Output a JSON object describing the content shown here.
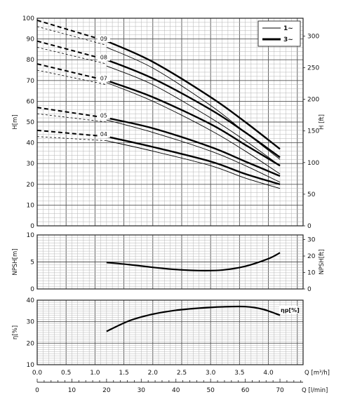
{
  "chart_data": [
    {
      "type": "line",
      "panel": "head",
      "ylabel_left": "H[m]",
      "ylabel_right": "H [ft]",
      "ylim": [
        0,
        100
      ],
      "ylim_ft": [
        0,
        328.1
      ],
      "xlim": [
        0,
        4.6
      ],
      "yticks": [
        0,
        10,
        20,
        30,
        40,
        50,
        60,
        70,
        80,
        90,
        100
      ],
      "yticks_ft": [
        0,
        50,
        100,
        150,
        200,
        250,
        300
      ],
      "legend": {
        "placement": "top-right",
        "entries": [
          {
            "label": "1~",
            "style": "thin"
          },
          {
            "label": "3~",
            "style": "thick"
          }
        ]
      },
      "series": [
        {
          "name": "09",
          "phase": "3~",
          "x": [
            1.2,
            2.0,
            3.0,
            3.6,
            4.2
          ],
          "y": [
            89,
            79,
            62,
            50,
            37
          ],
          "extrap_x": [
            0,
            1.2
          ],
          "extrap_y": [
            99,
            89
          ]
        },
        {
          "name": "09",
          "phase": "1~",
          "x": [
            1.2,
            2.0,
            3.0,
            3.6,
            4.2
          ],
          "y": [
            86,
            76,
            58,
            45,
            32
          ]
        },
        {
          "name": "08",
          "phase": "3~",
          "x": [
            1.2,
            2.0,
            3.0,
            3.6,
            4.2
          ],
          "y": [
            80,
            71,
            56,
            45,
            33
          ],
          "extrap_x": [
            0,
            1.2
          ],
          "extrap_y": [
            89,
            80
          ]
        },
        {
          "name": "08",
          "phase": "1~",
          "x": [
            1.2,
            2.0,
            3.0,
            3.6,
            4.2
          ],
          "y": [
            77,
            68,
            52,
            41,
            29
          ]
        },
        {
          "name": "07",
          "phase": "3~",
          "x": [
            1.2,
            2.0,
            3.0,
            3.6,
            4.2
          ],
          "y": [
            70,
            62,
            49,
            39,
            29
          ],
          "extrap_x": [
            0,
            1.2
          ],
          "extrap_y": [
            78,
            70
          ]
        },
        {
          "name": "07",
          "phase": "1~",
          "x": [
            1.2,
            2.0,
            3.0,
            3.6,
            4.2
          ],
          "y": [
            69,
            60,
            46,
            36,
            25
          ]
        },
        {
          "name": "05",
          "phase": "3~",
          "x": [
            1.2,
            2.0,
            3.0,
            3.6,
            4.2
          ],
          "y": [
            52,
            47,
            38,
            31,
            24
          ],
          "extrap_x": [
            0,
            1.2
          ],
          "extrap_y": [
            57,
            52
          ]
        },
        {
          "name": "05",
          "phase": "1~",
          "x": [
            1.2,
            2.0,
            3.0,
            3.6,
            4.2
          ],
          "y": [
            51,
            45,
            36,
            29,
            21
          ]
        },
        {
          "name": "04",
          "phase": "3~",
          "x": [
            1.2,
            2.0,
            3.0,
            3.6,
            4.2
          ],
          "y": [
            43,
            38,
            31,
            25,
            20
          ],
          "extrap_x": [
            0,
            1.2
          ],
          "extrap_y": [
            46,
            43
          ]
        },
        {
          "name": "04",
          "phase": "1~",
          "x": [
            1.2,
            2.0,
            3.0,
            3.6,
            4.2
          ],
          "y": [
            41,
            36,
            29,
            23,
            18
          ]
        }
      ]
    },
    {
      "type": "line",
      "panel": "npsh",
      "ylabel_left": "NPSH[m]",
      "ylabel_right": "NPSH[ft]",
      "ylim": [
        0,
        10
      ],
      "ylim_ft": [
        0,
        32.8
      ],
      "xlim": [
        0,
        4.6
      ],
      "yticks": [
        0,
        5,
        10
      ],
      "yticks_ft": [
        0,
        10,
        20,
        30
      ],
      "series": [
        {
          "x": [
            1.2,
            1.6,
            2.0,
            2.4,
            2.8,
            3.2,
            3.6,
            4.0,
            4.2
          ],
          "y": [
            4.9,
            4.5,
            4.0,
            3.6,
            3.4,
            3.5,
            4.2,
            5.6,
            6.7
          ]
        }
      ]
    },
    {
      "type": "line",
      "panel": "efficiency",
      "ylabel_left": "η[%]",
      "ylim": [
        10,
        40
      ],
      "xlim": [
        0,
        4.6
      ],
      "yticks": [
        10,
        20,
        30,
        40
      ],
      "annotation": "ηp[%]",
      "series": [
        {
          "x": [
            1.2,
            1.6,
            2.0,
            2.4,
            2.8,
            3.2,
            3.6,
            3.9,
            4.2
          ],
          "y": [
            25.5,
            30.5,
            33.5,
            35.3,
            36.3,
            36.9,
            37.0,
            35.8,
            33.0
          ]
        }
      ]
    }
  ],
  "x_axis": {
    "label_m3h": "Q [m³/h]",
    "ticks_m3h": [
      "0.0",
      "0.5",
      "1.0",
      "1.5",
      "2.0",
      "2.5",
      "3.0",
      "3.5",
      "4.0"
    ],
    "ticks_m3h_values": [
      0,
      0.5,
      1.0,
      1.5,
      2.0,
      2.5,
      3.0,
      3.5,
      4.0
    ],
    "label_lmin": "Q [l/min]",
    "ticks_lmin": [
      "0",
      "10",
      "20",
      "30",
      "40",
      "50",
      "60",
      "70"
    ],
    "ticks_lmin_values": [
      0,
      10,
      20,
      30,
      40,
      50,
      60,
      70
    ]
  }
}
